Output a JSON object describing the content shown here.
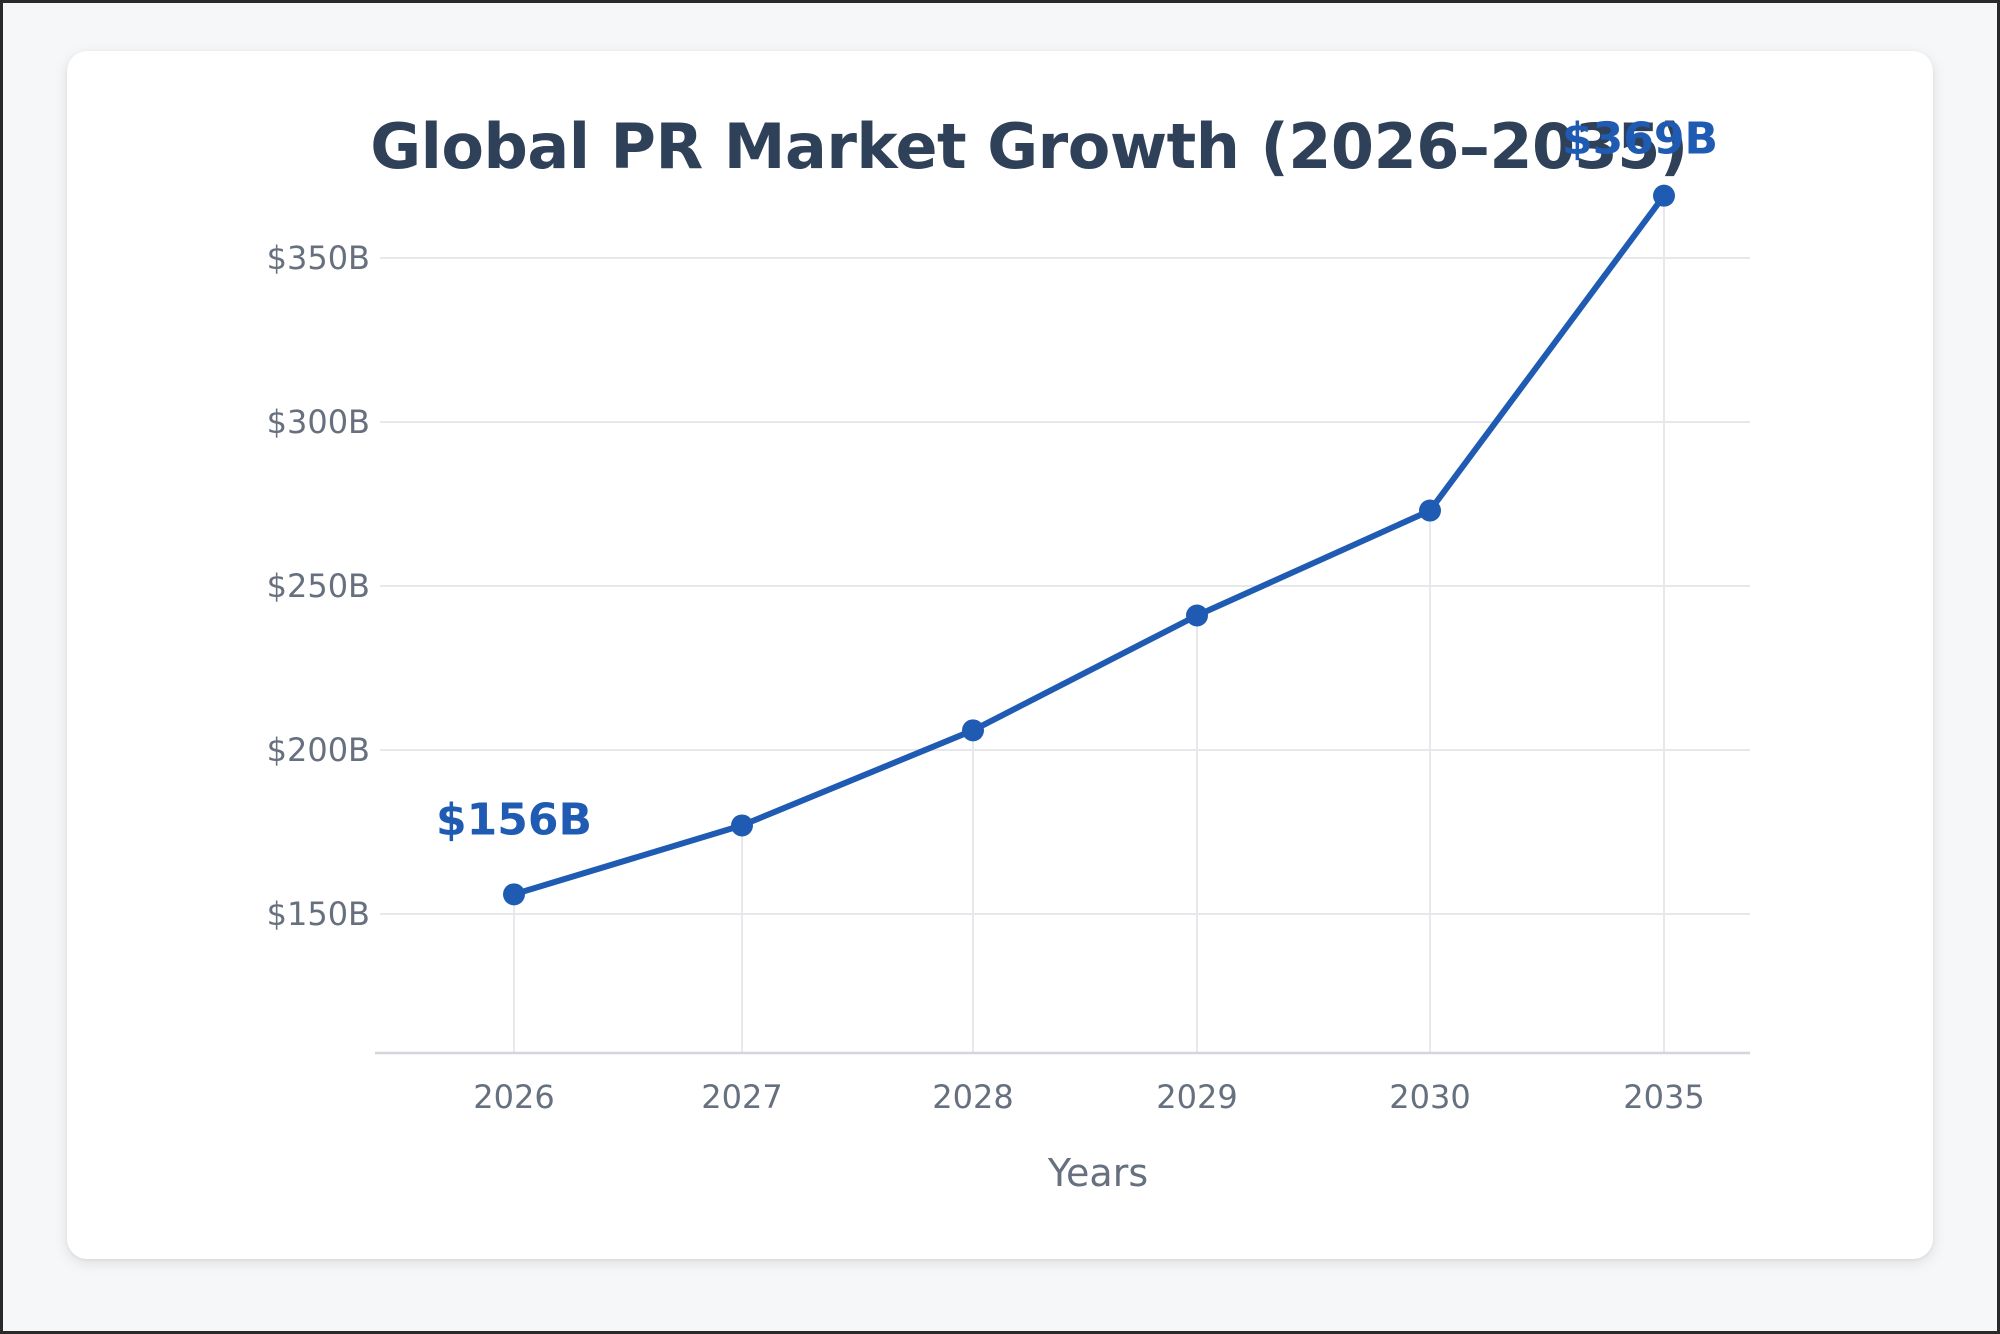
{
  "chart_data": {
    "type": "line",
    "title": "Global PR Market Growth (2026–2035)",
    "xlabel": "Years",
    "ylabel": "",
    "categories": [
      "2026",
      "2027",
      "2028",
      "2029",
      "2030",
      "2035"
    ],
    "series": [
      {
        "name": "",
        "values": [
          156,
          177,
          206,
          241,
          273,
          369
        ]
      }
    ],
    "y_ticks": [
      150,
      200,
      250,
      300,
      350
    ],
    "y_tick_labels": [
      "$150B",
      "$200B",
      "$250B",
      "$300B",
      "$350B"
    ],
    "ylim": [
      150,
      350
    ],
    "data_labels": [
      {
        "category": "2026",
        "text": "$156B"
      },
      {
        "category": "2035",
        "text": "$369B"
      }
    ],
    "grid": true,
    "legend": "none",
    "colors": {
      "line": "#1f5bb3",
      "label": "#1f5bb3",
      "title": "#2f4159",
      "grid": "#e6e8eb",
      "axis": "#d3d6db",
      "tick_text": "#66707e"
    }
  }
}
